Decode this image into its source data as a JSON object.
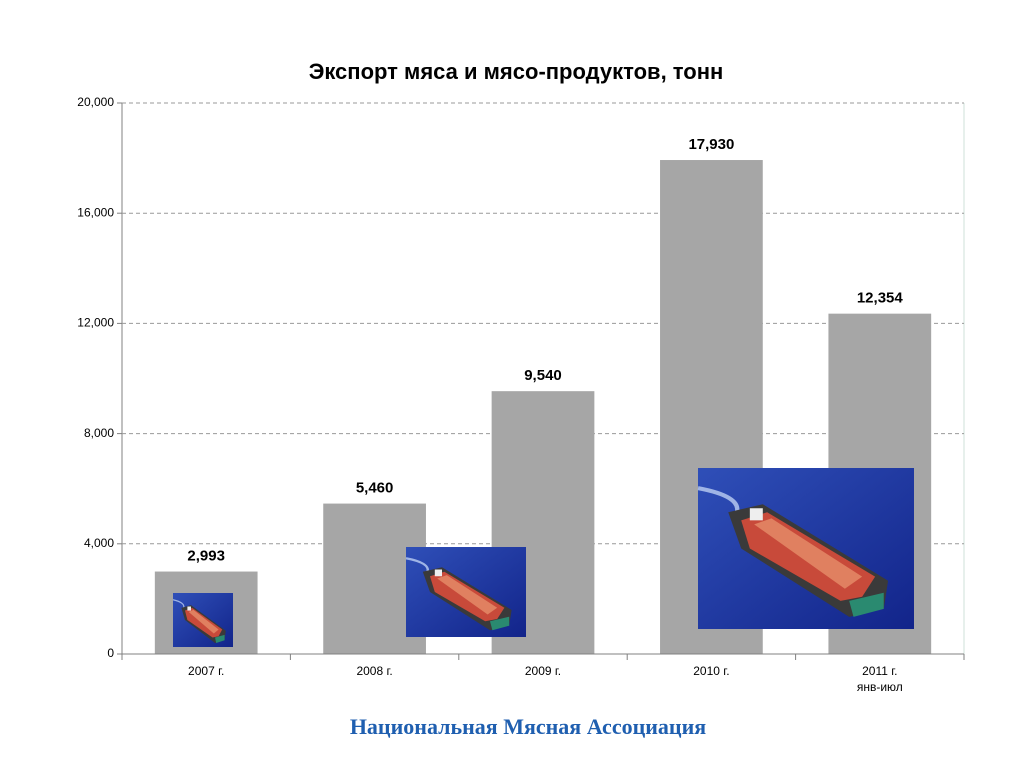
{
  "chart_data": {
    "type": "bar",
    "title": "Экспорт мяса и мясо-продуктов, тонн",
    "categories": [
      "2007 г.",
      "2008 г.",
      "2009 г.",
      "2010 г.",
      "2011 г.\nянв-июл"
    ],
    "values": [
      2993,
      5460,
      9540,
      17930,
      12354
    ],
    "value_labels": [
      "2,993",
      "5,460",
      "9,540",
      "17,930",
      "12,354"
    ],
    "color": "#a6a6a6",
    "ylim": [
      0,
      20000
    ],
    "yticks": [
      0,
      {
        "value": 4000,
        "label": "4,000"
      },
      {
        "value": 8000,
        "label": "8,000"
      },
      {
        "value": 12000,
        "label": "12,000"
      },
      {
        "value": 16000,
        "label": "16,000"
      },
      {
        "value": 20000,
        "label": "20,000"
      }
    ],
    "grid": true,
    "source": "Национальная Мясная Ассоциация"
  }
}
